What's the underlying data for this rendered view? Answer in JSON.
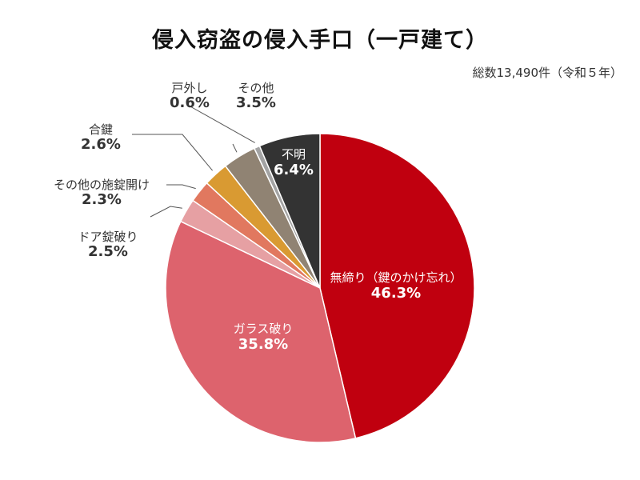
{
  "chart_data": {
    "type": "pie",
    "title": "侵入窃盗の侵入手口（一戸建て）",
    "note": "総数13,490件（令和５年）",
    "slices": [
      {
        "label": "無締り（鍵のかけ忘れ）",
        "value": 46.3,
        "pct_text": "46.3%",
        "color": "#c0000f"
      },
      {
        "label": "ガラス破り",
        "value": 35.8,
        "pct_text": "35.8%",
        "color": "#dd636d"
      },
      {
        "label": "ドア錠破り",
        "value": 2.5,
        "pct_text": "2.5%",
        "color": "#e6a0a3"
      },
      {
        "label": "その他の施錠開け",
        "value": 2.3,
        "pct_text": "2.3%",
        "color": "#e1785f"
      },
      {
        "label": "合鍵",
        "value": 2.6,
        "pct_text": "2.6%",
        "color": "#d99a32"
      },
      {
        "label": "その他",
        "value": 3.5,
        "pct_text": "3.5%",
        "color": "#908373"
      },
      {
        "label": "戸外し",
        "value": 0.6,
        "pct_text": "0.6%",
        "color": "#a3a3a3"
      },
      {
        "label": "不明",
        "value": 6.4,
        "pct_text": "6.4%",
        "color": "#333333"
      }
    ]
  }
}
